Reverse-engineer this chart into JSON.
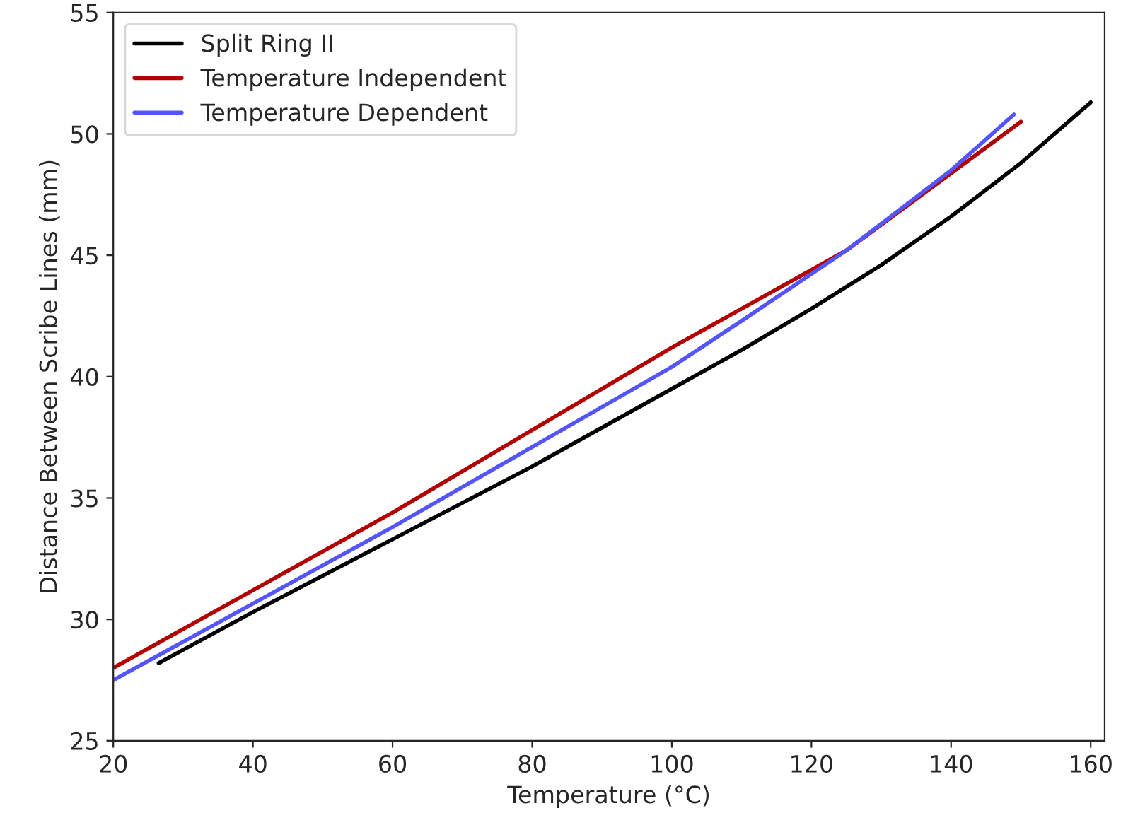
{
  "chart_data": {
    "type": "line",
    "xlabel": "Temperature (°C)",
    "ylabel": "Distance Between Scribe Lines (mm)",
    "xlim": [
      20,
      162
    ],
    "ylim": [
      25,
      55
    ],
    "xticks": [
      20,
      40,
      60,
      80,
      100,
      120,
      140,
      160
    ],
    "yticks": [
      25,
      30,
      35,
      40,
      45,
      50,
      55
    ],
    "legend": "top left",
    "grid": false,
    "series": [
      {
        "name": "Split Ring II",
        "color": "#000000",
        "x": [
          26.5,
          40,
          60,
          80,
          100,
          110,
          120,
          130,
          140,
          150,
          160
        ],
        "values": [
          28.2,
          30.3,
          33.3,
          36.3,
          39.5,
          41.1,
          42.8,
          44.6,
          46.6,
          48.8,
          51.3
        ]
      },
      {
        "name": "Temperature Independent",
        "color": "#b30000",
        "x": [
          20,
          60,
          100,
          125,
          150
        ],
        "values": [
          28.0,
          34.4,
          41.2,
          45.2,
          50.5
        ]
      },
      {
        "name": "Temperature Dependent",
        "color": "#5555ff",
        "x": [
          20,
          60,
          100,
          110,
          125,
          140,
          149
        ],
        "values": [
          27.5,
          33.8,
          40.4,
          42.3,
          45.2,
          48.5,
          50.8
        ]
      }
    ]
  }
}
